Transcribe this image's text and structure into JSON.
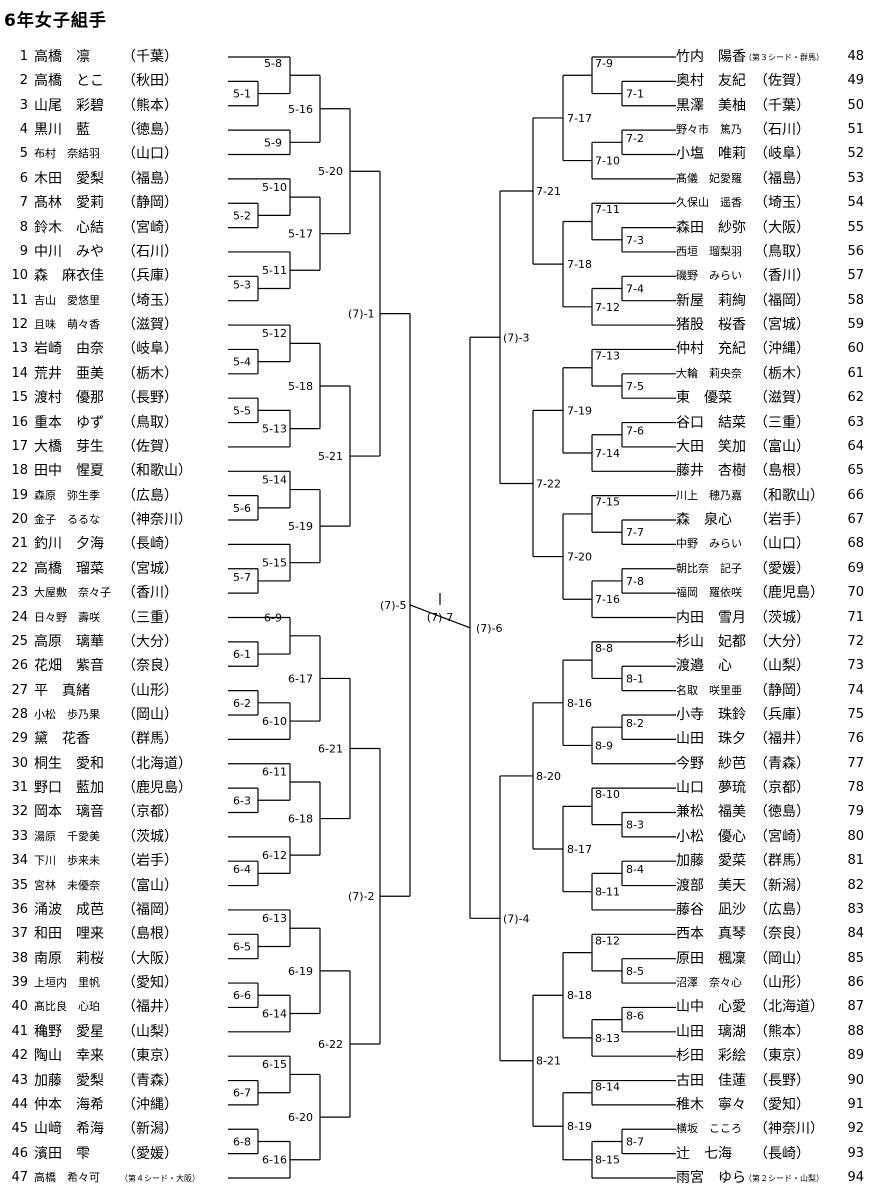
{
  "title": "6年女子組手",
  "left": [
    {
      "num": "1",
      "name": "高橋　凛",
      "pref": "（千葉）"
    },
    {
      "num": "2",
      "name": "高橋　とこ",
      "pref": "（秋田）"
    },
    {
      "num": "3",
      "name": "山尾　彩碧",
      "pref": "（熊本）"
    },
    {
      "num": "4",
      "name": "黒川　藍",
      "pref": "（徳島）"
    },
    {
      "num": "5",
      "name": "布村　奈結羽",
      "pref": "（山口）",
      "small": true
    },
    {
      "num": "6",
      "name": "木田　愛梨",
      "pref": "（福島）"
    },
    {
      "num": "7",
      "name": "髙林　愛莉",
      "pref": "（静岡）"
    },
    {
      "num": "8",
      "name": "鈴木　心結",
      "pref": "（宮崎）"
    },
    {
      "num": "9",
      "name": "中川　みや",
      "pref": "（石川）"
    },
    {
      "num": "10",
      "name": "森　麻衣佳",
      "pref": "（兵庫）"
    },
    {
      "num": "11",
      "name": "吉山　愛悠里",
      "pref": "（埼玉）",
      "small": true
    },
    {
      "num": "12",
      "name": "且味　萌々香",
      "pref": "（滋賀）",
      "small": true
    },
    {
      "num": "13",
      "name": "岩崎　由奈",
      "pref": "（岐阜）"
    },
    {
      "num": "14",
      "name": "荒井　亜美",
      "pref": "（栃木）"
    },
    {
      "num": "15",
      "name": "渡村　優那",
      "pref": "（長野）"
    },
    {
      "num": "16",
      "name": "重本　ゆず",
      "pref": "（鳥取）"
    },
    {
      "num": "17",
      "name": "大橋　芽生",
      "pref": "（佐賀）"
    },
    {
      "num": "18",
      "name": "田中　惺夏",
      "pref": "（和歌山）"
    },
    {
      "num": "19",
      "name": "森原　弥生季",
      "pref": "（広島）",
      "small": true
    },
    {
      "num": "20",
      "name": "金子　るるな",
      "pref": "（神奈川）",
      "small": true
    },
    {
      "num": "21",
      "name": "釣川　夕海",
      "pref": "（長崎）"
    },
    {
      "num": "22",
      "name": "高橋　瑠菜",
      "pref": "（宮城）"
    },
    {
      "num": "23",
      "name": "大屋敷　奈々子",
      "pref": "（香川）",
      "small": true
    },
    {
      "num": "24",
      "name": "日々野　壽咲",
      "pref": "（三重）",
      "small": true
    },
    {
      "num": "25",
      "name": "高原　璃華",
      "pref": "（大分）"
    },
    {
      "num": "26",
      "name": "花畑　紫音",
      "pref": "（奈良）"
    },
    {
      "num": "27",
      "name": "平　真緒",
      "pref": "（山形）"
    },
    {
      "num": "28",
      "name": "小松　歩乃果",
      "pref": "（岡山）",
      "small": true
    },
    {
      "num": "29",
      "name": "黛　花香",
      "pref": "（群馬）"
    },
    {
      "num": "30",
      "name": "桐生　愛和",
      "pref": "（北海道）"
    },
    {
      "num": "31",
      "name": "野口　藍加",
      "pref": "（鹿児島）"
    },
    {
      "num": "32",
      "name": "岡本　璃音",
      "pref": "（京都）"
    },
    {
      "num": "33",
      "name": "湯原　千愛美",
      "pref": "（茨城）",
      "small": true
    },
    {
      "num": "34",
      "name": "下川　歩来未",
      "pref": "（岩手）",
      "small": true
    },
    {
      "num": "35",
      "name": "宮林　未優奈",
      "pref": "（富山）",
      "small": true
    },
    {
      "num": "36",
      "name": "涌波　成芭",
      "pref": "（福岡）"
    },
    {
      "num": "37",
      "name": "和田　哩来",
      "pref": "（島根）"
    },
    {
      "num": "38",
      "name": "南原　莉桜",
      "pref": "（大阪）"
    },
    {
      "num": "39",
      "name": "上垣内　里帆",
      "pref": "（愛知）",
      "small": true
    },
    {
      "num": "40",
      "name": "髙比良　心珀",
      "pref": "（福井）",
      "small": true
    },
    {
      "num": "41",
      "name": "穐野　愛星",
      "pref": "（山梨）"
    },
    {
      "num": "42",
      "name": "陶山　幸来",
      "pref": "（東京）"
    },
    {
      "num": "43",
      "name": "加藤　愛梨",
      "pref": "（青森）"
    },
    {
      "num": "44",
      "name": "仲本　海希",
      "pref": "（沖縄）"
    },
    {
      "num": "45",
      "name": "山﨑　希海",
      "pref": "（新潟）"
    },
    {
      "num": "46",
      "name": "濱田　雫",
      "pref": "（愛媛）"
    },
    {
      "num": "47",
      "name": "高橋　希々可",
      "pref": "",
      "note": "（第４シード・大阪）",
      "small": true
    }
  ],
  "right": [
    {
      "num": "48",
      "name": "竹内　陽香",
      "pref": "",
      "note": "（第３シード・群馬）"
    },
    {
      "num": "49",
      "name": "奥村　友紀",
      "pref": "（佐賀）"
    },
    {
      "num": "50",
      "name": "黒澤　美柚",
      "pref": "（千葉）"
    },
    {
      "num": "51",
      "name": "野々市　篤乃",
      "pref": "（石川）",
      "small": true
    },
    {
      "num": "52",
      "name": "小塩　唯莉",
      "pref": "（岐阜）"
    },
    {
      "num": "53",
      "name": "髙儀　妃愛羅",
      "pref": "（福島）",
      "small": true
    },
    {
      "num": "54",
      "name": "久保山　遥香",
      "pref": "（埼玉）",
      "small": true
    },
    {
      "num": "55",
      "name": "森田　紗弥",
      "pref": "（大阪）"
    },
    {
      "num": "56",
      "name": "西垣　瑠梨羽",
      "pref": "（鳥取）",
      "small": true
    },
    {
      "num": "57",
      "name": "磯野　みらい",
      "pref": "（香川）",
      "small": true
    },
    {
      "num": "58",
      "name": "新屋　莉絢",
      "pref": "（福岡）"
    },
    {
      "num": "59",
      "name": "猪股　桜香",
      "pref": "（宮城）"
    },
    {
      "num": "60",
      "name": "仲村　充紀",
      "pref": "（沖縄）"
    },
    {
      "num": "61",
      "name": "大輪　莉央奈",
      "pref": "（栃木）",
      "small": true
    },
    {
      "num": "62",
      "name": "東　優菜",
      "pref": "（滋賀）"
    },
    {
      "num": "63",
      "name": "谷口　結菜",
      "pref": "（三重）"
    },
    {
      "num": "64",
      "name": "大田　笑加",
      "pref": "（富山）"
    },
    {
      "num": "65",
      "name": "藤井　杏樹",
      "pref": "（島根）"
    },
    {
      "num": "66",
      "name": "川上　穂乃嘉",
      "pref": "（和歌山）",
      "small": true
    },
    {
      "num": "67",
      "name": "森　泉心",
      "pref": "（岩手）"
    },
    {
      "num": "68",
      "name": "中野　みらい",
      "pref": "（山口）",
      "small": true
    },
    {
      "num": "69",
      "name": "朝比奈　記子",
      "pref": "（愛媛）",
      "small": true
    },
    {
      "num": "70",
      "name": "福岡　羅依咲",
      "pref": "（鹿児島）",
      "small": true
    },
    {
      "num": "71",
      "name": "内田　雪月",
      "pref": "（茨城）"
    },
    {
      "num": "72",
      "name": "杉山　妃都",
      "pref": "（大分）"
    },
    {
      "num": "73",
      "name": "渡邉　心",
      "pref": "（山梨）"
    },
    {
      "num": "74",
      "name": "名取　咲里亜",
      "pref": "（静岡）",
      "small": true
    },
    {
      "num": "75",
      "name": "小寺　珠鈴",
      "pref": "（兵庫）"
    },
    {
      "num": "76",
      "name": "山田　珠夕",
      "pref": "（福井）"
    },
    {
      "num": "77",
      "name": "今野　紗芭",
      "pref": "（青森）"
    },
    {
      "num": "78",
      "name": "山口　夢琉",
      "pref": "（京都）"
    },
    {
      "num": "79",
      "name": "兼松　福美",
      "pref": "（徳島）"
    },
    {
      "num": "80",
      "name": "小松　優心",
      "pref": "（宮崎）"
    },
    {
      "num": "81",
      "name": "加藤　愛菜",
      "pref": "（群馬）"
    },
    {
      "num": "82",
      "name": "渡部　美天",
      "pref": "（新潟）"
    },
    {
      "num": "83",
      "name": "藤谷　凪沙",
      "pref": "（広島）"
    },
    {
      "num": "84",
      "name": "西本　真琴",
      "pref": "（奈良）"
    },
    {
      "num": "85",
      "name": "原田　楓凜",
      "pref": "（岡山）"
    },
    {
      "num": "86",
      "name": "沼澤　奈々心",
      "pref": "（山形）",
      "small": true
    },
    {
      "num": "87",
      "name": "山中　心愛",
      "pref": "（北海道）"
    },
    {
      "num": "88",
      "name": "山田　璃湖",
      "pref": "（熊本）"
    },
    {
      "num": "89",
      "name": "杉田　彩絵",
      "pref": "（東京）"
    },
    {
      "num": "90",
      "name": "古田　佳蓮",
      "pref": "（長野）"
    },
    {
      "num": "91",
      "name": "稚木　寧々",
      "pref": "（愛知）"
    },
    {
      "num": "92",
      "name": "横坂　こころ",
      "pref": "（神奈川）",
      "small": true
    },
    {
      "num": "93",
      "name": "辻　七海",
      "pref": "（長崎）"
    },
    {
      "num": "94",
      "name": "雨宮　ゆら",
      "pref": "",
      "note": "（第２シード・山梨）"
    }
  ],
  "matches": {
    "5-1": "5-1",
    "5-2": "5-2",
    "5-3": "5-3",
    "5-4": "5-4",
    "5-5": "5-5",
    "5-6": "5-6",
    "5-7": "5-7",
    "5-8": "5-8",
    "5-9": "5-9",
    "5-10": "5-10",
    "5-11": "5-11",
    "5-12": "5-12",
    "5-13": "5-13",
    "5-14": "5-14",
    "5-15": "5-15",
    "5-16": "5-16",
    "5-17": "5-17",
    "5-18": "5-18",
    "5-19": "5-19",
    "5-20": "5-20",
    "5-21": "5-21",
    "6-1": "6-1",
    "6-2": "6-2",
    "6-3": "6-3",
    "6-4": "6-4",
    "6-5": "6-5",
    "6-6": "6-6",
    "6-7": "6-7",
    "6-8": "6-8",
    "6-9": "6-9",
    "6-10": "6-10",
    "6-11": "6-11",
    "6-12": "6-12",
    "6-13": "6-13",
    "6-14": "6-14",
    "6-15": "6-15",
    "6-16": "6-16",
    "6-17": "6-17",
    "6-18": "6-18",
    "6-19": "6-19",
    "6-20": "6-20",
    "6-21": "6-21",
    "6-22": "6-22",
    "7-1": "7-1",
    "7-2": "7-2",
    "7-3": "7-3",
    "7-4": "7-4",
    "7-5": "7-5",
    "7-6": "7-6",
    "7-7": "7-7",
    "7-8": "7-8",
    "7-9": "7-9",
    "7-10": "7-10",
    "7-11": "7-11",
    "7-12": "7-12",
    "7-13": "7-13",
    "7-14": "7-14",
    "7-15": "7-15",
    "7-16": "7-16",
    "7-17": "7-17",
    "7-18": "7-18",
    "7-19": "7-19",
    "7-20": "7-20",
    "7-21": "7-21",
    "7-22": "7-22",
    "8-1": "8-1",
    "8-2": "8-2",
    "8-3": "8-3",
    "8-4": "8-4",
    "8-5": "8-5",
    "8-6": "8-6",
    "8-7": "8-7",
    "8-8": "8-8",
    "8-9": "8-9",
    "8-10": "8-10",
    "8-11": "8-11",
    "8-12": "8-12",
    "8-13": "8-13",
    "8-14": "8-14",
    "8-15": "8-15",
    "8-16": "8-16",
    "8-17": "8-17",
    "8-18": "8-18",
    "8-19": "8-19",
    "8-20": "8-20",
    "8-21": "8-21",
    "(7)-1": "(7)-1",
    "(7)-2": "(7)-2",
    "(7)-3": "(7)-3",
    "(7)-4": "(7)-4",
    "(7)-5": "(7)-5",
    "(7)-6": "(7)-6",
    "(7)-7": "(7)-7"
  }
}
